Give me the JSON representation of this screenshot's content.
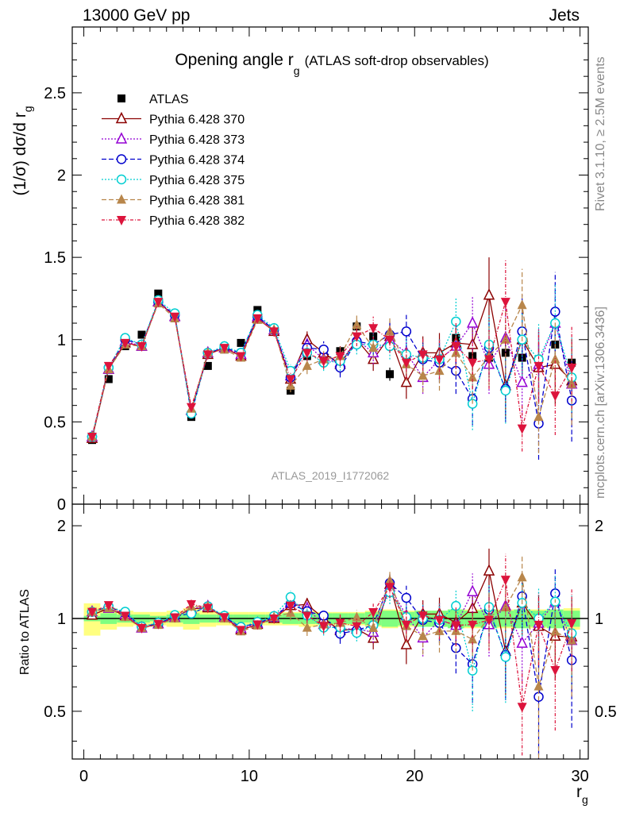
{
  "header": {
    "left": "13000 GeV pp",
    "right": "Jets"
  },
  "side_text": {
    "rivet": "Rivet 3.1.10, ≥ 2.5M events",
    "mcplots": "mcplots.cern.ch [arXiv:1306.3436]"
  },
  "chart_data": {
    "type": "scatter",
    "title_main": "Opening angle r",
    "title_sub": "g",
    "title_suffix": "(ATLAS soft-drop observables)",
    "ylabel_main": "(1/σ) dσ/d r",
    "ylabel_sub": "g",
    "ratio_ylabel": "Ratio to ATLAS",
    "xlabel_main": "r",
    "xlabel_sub": "g",
    "watermark": "ATLAS_2019_I1772062",
    "xlim": [
      -0.7,
      30.5
    ],
    "ylim_main": [
      0,
      2.9
    ],
    "ylim_ratio": [
      0.35,
      2.35
    ],
    "ratio_scale": "log",
    "x_ticks": [
      0,
      10,
      20,
      30
    ],
    "y_ticks_main": [
      0,
      0.5,
      1,
      1.5,
      2,
      2.5
    ],
    "y_ticks_main_labels": [
      "0",
      "0.5",
      "1",
      "1.5",
      "2",
      "2.5"
    ],
    "y_ticks_ratio": [
      0.5,
      1,
      2
    ],
    "y_ticks_ratio_labels": [
      "0.5",
      "1",
      "2"
    ],
    "legend_position": "top-left",
    "x": [
      0.5,
      1.5,
      2.5,
      3.5,
      4.5,
      5.5,
      6.5,
      7.5,
      8.5,
      9.5,
      10.5,
      11.5,
      12.5,
      13.5,
      14.5,
      15.5,
      16.5,
      17.5,
      18.5,
      19.5,
      20.5,
      21.5,
      22.5,
      23.5,
      24.5,
      25.5,
      26.5,
      27.5,
      28.5,
      29.5
    ],
    "data": {
      "name": "ATLAS",
      "values": [
        0.39,
        0.76,
        0.96,
        1.03,
        1.28,
        1.13,
        0.53,
        0.84,
        0.94,
        0.98,
        1.18,
        1.05,
        0.69,
        0.9,
        0.92,
        0.93,
        1.08,
        1.02,
        0.79,
        0.9,
        0.89,
        0.89,
        1.01,
        0.9,
        0.89,
        0.92,
        0.89,
        0.88,
        0.97,
        0.86
      ],
      "errors": [
        0.01,
        0.01,
        0.01,
        0.01,
        0.01,
        0.01,
        0.01,
        0.01,
        0.01,
        0.01,
        0.01,
        0.01,
        0.02,
        0.02,
        0.02,
        0.03,
        0.03,
        0.04,
        0.04,
        0.05,
        0.05,
        0.06,
        0.06,
        0.07,
        0.08,
        0.09,
        0.1,
        0.1,
        0.11,
        0.12
      ]
    },
    "band_inner": [
      0.02,
      0.04,
      0.03,
      0.03,
      0.02,
      0.03,
      0.04,
      0.03,
      0.03,
      0.03,
      0.03,
      0.03,
      0.04,
      0.04,
      0.04,
      0.04,
      0.04,
      0.05,
      0.06,
      0.05,
      0.06,
      0.06,
      0.07,
      0.06,
      0.07,
      0.06,
      0.07,
      0.06,
      0.07,
      0.06
    ],
    "band_outer": [
      0.12,
      0.08,
      0.06,
      0.05,
      0.05,
      0.06,
      0.08,
      0.06,
      0.05,
      0.05,
      0.05,
      0.05,
      0.05,
      0.06,
      0.05,
      0.05,
      0.05,
      0.06,
      0.07,
      0.06,
      0.06,
      0.06,
      0.07,
      0.07,
      0.07,
      0.07,
      0.07,
      0.07,
      0.07,
      0.08
    ],
    "series": [
      {
        "name": "Pythia 6.428 370",
        "color": "#8b0000",
        "dash": "",
        "marker": "triangle-up-open",
        "values": [
          0.4,
          0.82,
          0.98,
          0.96,
          1.23,
          1.14,
          0.57,
          0.91,
          0.95,
          0.9,
          1.13,
          1.05,
          0.76,
          1.0,
          0.92,
          0.85,
          1.0,
          0.88,
          1.02,
          0.74,
          0.92,
          0.92,
          0.98,
          0.97,
          1.27,
          0.72,
          1.0,
          0.83,
          0.85,
          0.75
        ],
        "errors": [
          0.01,
          0.02,
          0.02,
          0.02,
          0.02,
          0.02,
          0.02,
          0.02,
          0.02,
          0.02,
          0.02,
          0.03,
          0.04,
          0.05,
          0.05,
          0.06,
          0.06,
          0.07,
          0.08,
          0.1,
          0.1,
          0.12,
          0.14,
          0.16,
          0.23,
          0.2,
          0.22,
          0.22,
          0.24,
          0.25
        ]
      },
      {
        "name": "Pythia 6.428 373",
        "color": "#9400d3",
        "dash": "2,2",
        "marker": "triangle-up-open",
        "values": [
          0.41,
          0.82,
          0.99,
          0.96,
          1.23,
          1.14,
          0.57,
          0.92,
          0.95,
          0.91,
          1.14,
          1.06,
          0.78,
          0.97,
          0.88,
          0.86,
          1.0,
          0.92,
          1.0,
          0.92,
          0.77,
          0.88,
          0.96,
          1.1,
          0.85,
          1.01,
          0.74,
          0.85,
          1.1,
          0.73
        ],
        "errors": [
          0.01,
          0.02,
          0.02,
          0.02,
          0.02,
          0.02,
          0.02,
          0.02,
          0.02,
          0.02,
          0.02,
          0.03,
          0.04,
          0.05,
          0.05,
          0.06,
          0.06,
          0.07,
          0.08,
          0.1,
          0.1,
          0.12,
          0.14,
          0.16,
          0.18,
          0.2,
          0.22,
          0.22,
          0.24,
          0.25
        ]
      },
      {
        "name": "Pythia 6.428 374",
        "color": "#0000cd",
        "dash": "6,3",
        "marker": "circle-open",
        "values": [
          0.41,
          0.83,
          1.0,
          0.97,
          1.23,
          1.15,
          0.55,
          0.92,
          0.95,
          0.92,
          1.14,
          1.06,
          0.77,
          0.95,
          0.94,
          0.83,
          0.99,
          0.97,
          1.03,
          1.05,
          0.88,
          0.86,
          0.81,
          0.64,
          0.95,
          0.7,
          1.05,
          0.49,
          1.17,
          0.63
        ],
        "errors": [
          0.01,
          0.02,
          0.02,
          0.02,
          0.02,
          0.02,
          0.02,
          0.02,
          0.02,
          0.02,
          0.02,
          0.03,
          0.04,
          0.05,
          0.05,
          0.06,
          0.06,
          0.07,
          0.08,
          0.1,
          0.1,
          0.12,
          0.14,
          0.16,
          0.18,
          0.2,
          0.22,
          0.22,
          0.24,
          0.25
        ]
      },
      {
        "name": "Pythia 6.428 375",
        "color": "#00ced1",
        "dash": "2,2",
        "marker": "circle-open",
        "values": [
          0.41,
          0.83,
          1.01,
          0.97,
          1.24,
          1.16,
          0.55,
          0.92,
          0.96,
          0.92,
          1.15,
          1.07,
          0.81,
          0.92,
          0.86,
          0.87,
          0.97,
          0.97,
          0.96,
          0.91,
          0.89,
          0.88,
          1.11,
          0.61,
          0.97,
          0.69,
          1.0,
          0.88,
          1.1,
          0.77
        ],
        "errors": [
          0.01,
          0.02,
          0.02,
          0.02,
          0.02,
          0.02,
          0.02,
          0.02,
          0.02,
          0.02,
          0.02,
          0.03,
          0.04,
          0.05,
          0.05,
          0.06,
          0.06,
          0.07,
          0.08,
          0.1,
          0.1,
          0.12,
          0.14,
          0.16,
          0.18,
          0.2,
          0.22,
          0.22,
          0.24,
          0.25
        ]
      },
      {
        "name": "Pythia 6.428 381",
        "color": "#b8864b",
        "dash": "6,3",
        "marker": "triangle-up-filled",
        "values": [
          0.41,
          0.82,
          0.97,
          0.96,
          1.22,
          1.13,
          0.58,
          0.92,
          0.94,
          0.89,
          1.12,
          1.06,
          0.72,
          0.84,
          0.88,
          0.9,
          1.09,
          0.95,
          1.05,
          0.85,
          0.78,
          0.81,
          0.92,
          0.77,
          0.9,
          1.0,
          1.21,
          0.53,
          0.88,
          0.73
        ],
        "errors": [
          0.01,
          0.02,
          0.02,
          0.02,
          0.02,
          0.02,
          0.02,
          0.02,
          0.02,
          0.02,
          0.02,
          0.03,
          0.04,
          0.05,
          0.05,
          0.06,
          0.06,
          0.07,
          0.08,
          0.1,
          0.1,
          0.12,
          0.14,
          0.16,
          0.18,
          0.2,
          0.22,
          0.22,
          0.24,
          0.25
        ]
      },
      {
        "name": "Pythia 6.428 382",
        "color": "#dc143c",
        "dash": "4,2,1,2",
        "marker": "triangle-down-filled",
        "values": [
          0.41,
          0.84,
          0.98,
          0.96,
          1.23,
          1.14,
          0.59,
          0.91,
          0.95,
          0.9,
          1.13,
          1.05,
          0.76,
          0.92,
          0.87,
          0.9,
          1.02,
          1.07,
          1.0,
          0.86,
          0.91,
          0.88,
          0.96,
          0.86,
          0.88,
          1.23,
          0.46,
          0.84,
          0.66,
          0.83
        ],
        "errors": [
          0.01,
          0.02,
          0.02,
          0.02,
          0.02,
          0.02,
          0.02,
          0.02,
          0.02,
          0.02,
          0.02,
          0.03,
          0.04,
          0.05,
          0.05,
          0.06,
          0.06,
          0.07,
          0.08,
          0.1,
          0.1,
          0.12,
          0.14,
          0.16,
          0.18,
          0.26,
          0.14,
          0.22,
          0.24,
          0.25
        ]
      }
    ]
  }
}
